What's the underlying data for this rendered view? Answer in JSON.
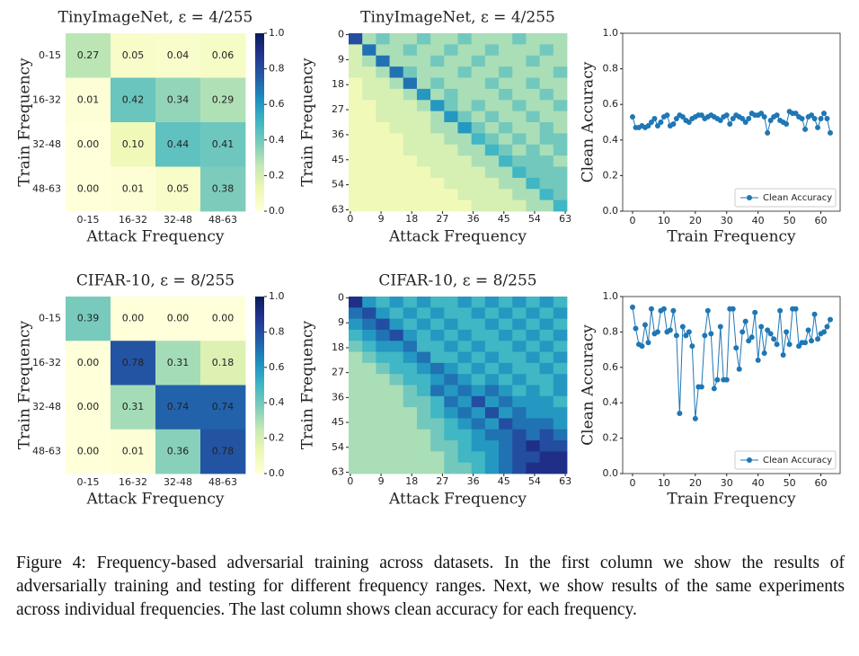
{
  "chart_data": [
    {
      "type": "heatmap",
      "title": "TinyImageNet, ε = 4/255",
      "xlabel": "Attack Frequency",
      "ylabel": "Train Frequency",
      "xcategories": [
        "0-15",
        "16-32",
        "32-48",
        "48-63"
      ],
      "ycategories": [
        "0-15",
        "16-32",
        "32-48",
        "48-63"
      ],
      "values": [
        [
          0.27,
          0.05,
          0.04,
          0.06
        ],
        [
          0.01,
          0.42,
          0.34,
          0.29
        ],
        [
          0.0,
          0.1,
          0.44,
          0.41
        ],
        [
          0.0,
          0.01,
          0.05,
          0.38
        ]
      ],
      "value_labels": [
        [
          "0.27",
          "0.05",
          "0.04",
          "0.06"
        ],
        [
          "0.01",
          "0.42",
          "0.34",
          "0.29"
        ],
        [
          "0.00",
          "0.10",
          "0.44",
          "0.41"
        ],
        [
          "0.00",
          "0.01",
          "0.05",
          "0.38"
        ]
      ],
      "clim": [
        0,
        1
      ],
      "cticks": [
        {
          "value": 0,
          "label": "0.0"
        },
        {
          "value": 0.2,
          "label": "0.2"
        },
        {
          "value": 0.4,
          "label": "0.4"
        },
        {
          "value": 0.6,
          "label": "0.6"
        },
        {
          "value": 0.8,
          "label": "0.8"
        },
        {
          "value": 1,
          "label": "1.0"
        }
      ],
      "colormap": [
        "#ffffd9",
        "#edf8b1",
        "#c7e9b4",
        "#7fcdbb",
        "#41b6c4",
        "#1d91c0",
        "#225ea8",
        "#253494",
        "#081d58"
      ]
    },
    {
      "type": "heatmap",
      "title": "TinyImageNet, ε = 4/255",
      "xlabel": "Attack Frequency",
      "ylabel": "Train Frequency",
      "xlim": [
        -0.5,
        63.5
      ],
      "ylim": [
        -0.5,
        63.5
      ],
      "xticks": [
        0,
        9,
        18,
        27,
        36,
        45,
        54,
        63
      ],
      "yticks": [
        0,
        9,
        18,
        27,
        36,
        45,
        54,
        63
      ],
      "values": [
        [
          0.8,
          0.3,
          0.4,
          0.3,
          0.3,
          0.4,
          0.3,
          0.3,
          0.4,
          0.3,
          0.3,
          0.3,
          0.4,
          0.3,
          0.3,
          0.3
        ],
        [
          0.2,
          0.7,
          0.3,
          0.3,
          0.4,
          0.3,
          0.3,
          0.4,
          0.3,
          0.3,
          0.4,
          0.3,
          0.3,
          0.3,
          0.4,
          0.3
        ],
        [
          0.2,
          0.3,
          0.7,
          0.3,
          0.3,
          0.3,
          0.4,
          0.3,
          0.3,
          0.4,
          0.3,
          0.3,
          0.3,
          0.4,
          0.3,
          0.3
        ],
        [
          0.2,
          0.2,
          0.3,
          0.7,
          0.4,
          0.3,
          0.3,
          0.3,
          0.4,
          0.3,
          0.3,
          0.4,
          0.3,
          0.3,
          0.3,
          0.4
        ],
        [
          0.1,
          0.2,
          0.2,
          0.3,
          0.7,
          0.3,
          0.4,
          0.3,
          0.3,
          0.3,
          0.4,
          0.3,
          0.3,
          0.4,
          0.3,
          0.3
        ],
        [
          0.1,
          0.2,
          0.2,
          0.2,
          0.3,
          0.6,
          0.3,
          0.4,
          0.3,
          0.3,
          0.3,
          0.4,
          0.3,
          0.3,
          0.4,
          0.3
        ],
        [
          0.1,
          0.1,
          0.2,
          0.2,
          0.2,
          0.3,
          0.6,
          0.4,
          0.3,
          0.4,
          0.3,
          0.3,
          0.4,
          0.3,
          0.3,
          0.4
        ],
        [
          0.1,
          0.1,
          0.2,
          0.2,
          0.2,
          0.2,
          0.3,
          0.6,
          0.4,
          0.3,
          0.4,
          0.3,
          0.3,
          0.4,
          0.3,
          0.3
        ],
        [
          0.1,
          0.1,
          0.1,
          0.2,
          0.2,
          0.2,
          0.3,
          0.3,
          0.6,
          0.4,
          0.3,
          0.4,
          0.3,
          0.3,
          0.4,
          0.3
        ],
        [
          0.1,
          0.1,
          0.1,
          0.1,
          0.2,
          0.2,
          0.2,
          0.3,
          0.3,
          0.5,
          0.4,
          0.3,
          0.4,
          0.3,
          0.4,
          0.4
        ],
        [
          0.1,
          0.1,
          0.1,
          0.1,
          0.2,
          0.2,
          0.2,
          0.2,
          0.3,
          0.3,
          0.5,
          0.4,
          0.3,
          0.4,
          0.3,
          0.4
        ],
        [
          0.1,
          0.1,
          0.1,
          0.1,
          0.1,
          0.2,
          0.2,
          0.2,
          0.2,
          0.3,
          0.3,
          0.5,
          0.4,
          0.4,
          0.4,
          0.3
        ],
        [
          0.1,
          0.1,
          0.1,
          0.1,
          0.1,
          0.1,
          0.2,
          0.2,
          0.2,
          0.2,
          0.3,
          0.3,
          0.5,
          0.4,
          0.4,
          0.4
        ],
        [
          0.1,
          0.1,
          0.1,
          0.1,
          0.1,
          0.1,
          0.1,
          0.2,
          0.2,
          0.2,
          0.2,
          0.3,
          0.3,
          0.5,
          0.4,
          0.4
        ],
        [
          0.1,
          0.1,
          0.1,
          0.1,
          0.1,
          0.1,
          0.1,
          0.1,
          0.2,
          0.2,
          0.2,
          0.2,
          0.3,
          0.3,
          0.5,
          0.4
        ],
        [
          0.1,
          0.1,
          0.1,
          0.1,
          0.1,
          0.1,
          0.1,
          0.1,
          0.1,
          0.2,
          0.2,
          0.2,
          0.2,
          0.3,
          0.3,
          0.5
        ]
      ],
      "clim": [
        0,
        1
      ],
      "colormap": [
        "#ffffd9",
        "#edf8b1",
        "#c7e9b4",
        "#7fcdbb",
        "#41b6c4",
        "#1d91c0",
        "#225ea8",
        "#253494",
        "#081d58"
      ]
    },
    {
      "type": "line",
      "xlabel": "Train Frequency",
      "ylabel": "Clean Accuracy",
      "x": [
        0,
        1,
        2,
        3,
        4,
        5,
        6,
        7,
        8,
        9,
        10,
        11,
        12,
        13,
        14,
        15,
        16,
        17,
        18,
        19,
        20,
        21,
        22,
        23,
        24,
        25,
        26,
        27,
        28,
        29,
        30,
        31,
        32,
        33,
        34,
        35,
        36,
        37,
        38,
        39,
        40,
        41,
        42,
        43,
        44,
        45,
        46,
        47,
        48,
        49,
        50,
        51,
        52,
        53,
        54,
        55,
        56,
        57,
        58,
        59,
        60,
        61,
        62,
        63
      ],
      "series": [
        {
          "name": "Clean Accuracy",
          "color": "#1f77b4",
          "values": [
            0.53,
            0.47,
            0.47,
            0.48,
            0.47,
            0.48,
            0.5,
            0.52,
            0.48,
            0.5,
            0.53,
            0.54,
            0.48,
            0.49,
            0.52,
            0.54,
            0.53,
            0.51,
            0.5,
            0.52,
            0.53,
            0.54,
            0.54,
            0.52,
            0.53,
            0.54,
            0.53,
            0.52,
            0.51,
            0.53,
            0.54,
            0.49,
            0.52,
            0.54,
            0.53,
            0.52,
            0.5,
            0.52,
            0.55,
            0.54,
            0.54,
            0.55,
            0.53,
            0.44,
            0.51,
            0.53,
            0.54,
            0.51,
            0.5,
            0.49,
            0.56,
            0.55,
            0.55,
            0.53,
            0.52,
            0.46,
            0.53,
            0.54,
            0.52,
            0.47,
            0.52,
            0.55,
            0.52,
            0.44
          ]
        }
      ],
      "xlim": [
        -3.15,
        66.15
      ],
      "ylim": [
        0,
        1
      ],
      "xticks": [
        0,
        10,
        20,
        30,
        40,
        50,
        60
      ],
      "yticks": [
        {
          "value": 0,
          "label": "0.0"
        },
        {
          "value": 0.2,
          "label": "0.2"
        },
        {
          "value": 0.4,
          "label": "0.4"
        },
        {
          "value": 0.6,
          "label": "0.6"
        },
        {
          "value": 0.8,
          "label": "0.8"
        },
        {
          "value": 1,
          "label": "1.0"
        }
      ],
      "legend": "lower right"
    },
    {
      "type": "heatmap",
      "title": "CIFAR-10, ε = 8/255",
      "xlabel": "Attack Frequency",
      "ylabel": "Train Frequency",
      "xcategories": [
        "0-15",
        "16-32",
        "32-48",
        "48-63"
      ],
      "ycategories": [
        "0-15",
        "16-32",
        "32-48",
        "48-63"
      ],
      "values": [
        [
          0.39,
          0.0,
          0.0,
          0.0
        ],
        [
          0.0,
          0.78,
          0.31,
          0.18
        ],
        [
          0.0,
          0.31,
          0.74,
          0.74
        ],
        [
          0.0,
          0.01,
          0.36,
          0.78
        ]
      ],
      "value_labels": [
        [
          "0.39",
          "0.00",
          "0.00",
          "0.00"
        ],
        [
          "0.00",
          "0.78",
          "0.31",
          "0.18"
        ],
        [
          "0.00",
          "0.31",
          "0.74",
          "0.74"
        ],
        [
          "0.00",
          "0.01",
          "0.36",
          "0.78"
        ]
      ],
      "clim": [
        0,
        1
      ],
      "cticks": [
        {
          "value": 0,
          "label": "0.0"
        },
        {
          "value": 0.2,
          "label": "0.2"
        },
        {
          "value": 0.4,
          "label": "0.4"
        },
        {
          "value": 0.6,
          "label": "0.6"
        },
        {
          "value": 0.8,
          "label": "0.8"
        },
        {
          "value": 1,
          "label": "1.0"
        }
      ],
      "colormap": [
        "#ffffd9",
        "#edf8b1",
        "#c7e9b4",
        "#7fcdbb",
        "#41b6c4",
        "#1d91c0",
        "#225ea8",
        "#253494",
        "#081d58"
      ]
    },
    {
      "type": "heatmap",
      "title": "CIFAR-10, ε = 8/255",
      "xlabel": "Attack Frequency",
      "ylabel": "Train Frequency",
      "xlim": [
        -0.5,
        63.5
      ],
      "ylim": [
        -0.5,
        63.5
      ],
      "xticks": [
        0,
        9,
        18,
        27,
        36,
        45,
        54,
        63
      ],
      "yticks": [
        0,
        9,
        18,
        27,
        36,
        45,
        54,
        63
      ],
      "values": [
        [
          0.9,
          0.6,
          0.5,
          0.6,
          0.5,
          0.6,
          0.5,
          0.5,
          0.6,
          0.5,
          0.6,
          0.5,
          0.6,
          0.5,
          0.6,
          0.5
        ],
        [
          0.7,
          0.8,
          0.6,
          0.5,
          0.6,
          0.5,
          0.6,
          0.5,
          0.5,
          0.6,
          0.5,
          0.6,
          0.5,
          0.6,
          0.5,
          0.6
        ],
        [
          0.6,
          0.7,
          0.8,
          0.6,
          0.5,
          0.6,
          0.5,
          0.6,
          0.5,
          0.5,
          0.6,
          0.5,
          0.6,
          0.5,
          0.6,
          0.5
        ],
        [
          0.5,
          0.6,
          0.7,
          0.8,
          0.6,
          0.5,
          0.6,
          0.5,
          0.6,
          0.5,
          0.5,
          0.6,
          0.5,
          0.6,
          0.5,
          0.6
        ],
        [
          0.4,
          0.5,
          0.6,
          0.6,
          0.7,
          0.5,
          0.5,
          0.6,
          0.5,
          0.6,
          0.5,
          0.5,
          0.6,
          0.5,
          0.6,
          0.5
        ],
        [
          0.3,
          0.4,
          0.5,
          0.5,
          0.6,
          0.7,
          0.5,
          0.5,
          0.6,
          0.5,
          0.6,
          0.5,
          0.5,
          0.6,
          0.5,
          0.6
        ],
        [
          0.3,
          0.3,
          0.4,
          0.5,
          0.5,
          0.6,
          0.7,
          0.6,
          0.5,
          0.6,
          0.5,
          0.6,
          0.5,
          0.5,
          0.6,
          0.5
        ],
        [
          0.3,
          0.3,
          0.3,
          0.4,
          0.5,
          0.5,
          0.6,
          0.7,
          0.6,
          0.5,
          0.6,
          0.5,
          0.6,
          0.5,
          0.5,
          0.6
        ],
        [
          0.3,
          0.3,
          0.3,
          0.3,
          0.4,
          0.5,
          0.7,
          0.6,
          0.7,
          0.6,
          0.7,
          0.6,
          0.5,
          0.6,
          0.5,
          0.6
        ],
        [
          0.3,
          0.3,
          0.3,
          0.3,
          0.4,
          0.4,
          0.5,
          0.7,
          0.6,
          0.8,
          0.6,
          0.7,
          0.6,
          0.6,
          0.6,
          0.5
        ],
        [
          0.3,
          0.3,
          0.3,
          0.3,
          0.3,
          0.4,
          0.5,
          0.6,
          0.7,
          0.6,
          0.8,
          0.6,
          0.7,
          0.6,
          0.6,
          0.6
        ],
        [
          0.3,
          0.3,
          0.3,
          0.3,
          0.3,
          0.4,
          0.4,
          0.5,
          0.6,
          0.7,
          0.6,
          0.8,
          0.7,
          0.7,
          0.7,
          0.6
        ],
        [
          0.3,
          0.3,
          0.3,
          0.3,
          0.3,
          0.3,
          0.4,
          0.5,
          0.5,
          0.6,
          0.7,
          0.7,
          0.8,
          0.7,
          0.8,
          0.7
        ],
        [
          0.3,
          0.3,
          0.3,
          0.3,
          0.3,
          0.3,
          0.4,
          0.4,
          0.5,
          0.6,
          0.6,
          0.7,
          0.8,
          0.9,
          0.8,
          0.8
        ],
        [
          0.3,
          0.3,
          0.3,
          0.3,
          0.3,
          0.3,
          0.3,
          0.4,
          0.5,
          0.5,
          0.6,
          0.7,
          0.8,
          0.8,
          0.9,
          0.9
        ],
        [
          0.3,
          0.3,
          0.3,
          0.3,
          0.3,
          0.3,
          0.3,
          0.4,
          0.4,
          0.5,
          0.6,
          0.7,
          0.8,
          0.9,
          0.9,
          0.9
        ]
      ],
      "clim": [
        0,
        1
      ],
      "colormap": [
        "#ffffd9",
        "#edf8b1",
        "#c7e9b4",
        "#7fcdbb",
        "#41b6c4",
        "#1d91c0",
        "#225ea8",
        "#253494",
        "#081d58"
      ]
    },
    {
      "type": "line",
      "xlabel": "Train Frequency",
      "ylabel": "Clean Accuracy",
      "x": [
        0,
        1,
        2,
        3,
        4,
        5,
        6,
        7,
        8,
        9,
        10,
        11,
        12,
        13,
        14,
        15,
        16,
        17,
        18,
        19,
        20,
        21,
        22,
        23,
        24,
        25,
        26,
        27,
        28,
        29,
        30,
        31,
        32,
        33,
        34,
        35,
        36,
        37,
        38,
        39,
        40,
        41,
        42,
        43,
        44,
        45,
        46,
        47,
        48,
        49,
        50,
        51,
        52,
        53,
        54,
        55,
        56,
        57,
        58,
        59,
        60,
        61,
        62,
        63
      ],
      "series": [
        {
          "name": "Clean Accuracy",
          "color": "#1f77b4",
          "values": [
            0.94,
            0.82,
            0.73,
            0.72,
            0.84,
            0.74,
            0.93,
            0.79,
            0.8,
            0.92,
            0.93,
            0.8,
            0.81,
            0.92,
            0.78,
            0.34,
            0.83,
            0.78,
            0.8,
            0.72,
            0.31,
            0.49,
            0.49,
            0.78,
            0.92,
            0.79,
            0.48,
            0.53,
            0.83,
            0.53,
            0.53,
            0.93,
            0.93,
            0.71,
            0.59,
            0.8,
            0.86,
            0.75,
            0.77,
            0.91,
            0.64,
            0.83,
            0.68,
            0.81,
            0.79,
            0.76,
            0.73,
            0.92,
            0.67,
            0.8,
            0.73,
            0.93,
            0.93,
            0.72,
            0.74,
            0.74,
            0.81,
            0.75,
            0.9,
            0.76,
            0.79,
            0.8,
            0.83,
            0.87
          ]
        }
      ],
      "xlim": [
        -3.15,
        66.15
      ],
      "ylim": [
        0,
        1
      ],
      "xticks": [
        0,
        10,
        20,
        30,
        40,
        50,
        60
      ],
      "yticks": [
        {
          "value": 0,
          "label": "0.0"
        },
        {
          "value": 0.2,
          "label": "0.2"
        },
        {
          "value": 0.4,
          "label": "0.4"
        },
        {
          "value": 0.6,
          "label": "0.6"
        },
        {
          "value": 0.8,
          "label": "0.8"
        },
        {
          "value": 1,
          "label": "1.0"
        }
      ],
      "legend": "lower right"
    }
  ],
  "caption": "Figure 4: Frequency-based adversarial training across datasets. In the first column we show the results of adversarially training and testing for different frequency ranges. Next, we show results of the same experiments across individual frequencies. The last column shows clean accuracy for each frequency."
}
